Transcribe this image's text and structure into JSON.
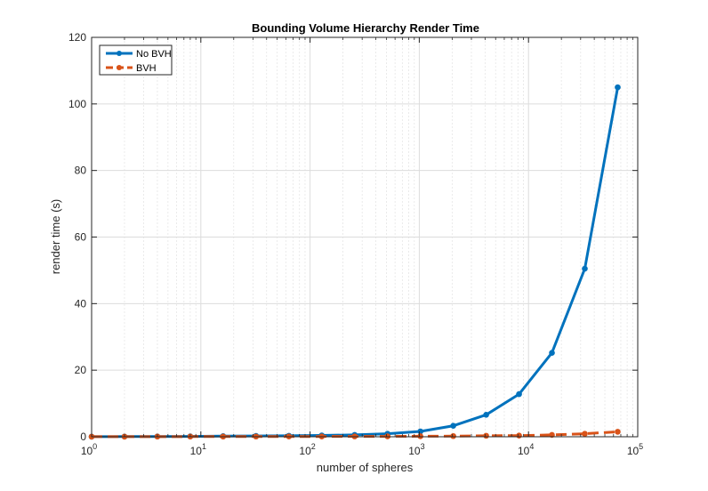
{
  "chart_data": {
    "type": "line",
    "title": "Bounding Volume Hierarchy Render Time",
    "xlabel": "number of spheres",
    "ylabel": "render time (s)",
    "xscale": "log",
    "xlim": [
      1,
      100000
    ],
    "ylim": [
      0,
      120
    ],
    "x_ticks": [
      {
        "base": "10",
        "exp": "0"
      },
      {
        "base": "10",
        "exp": "1"
      },
      {
        "base": "10",
        "exp": "2"
      },
      {
        "base": "10",
        "exp": "3"
      },
      {
        "base": "10",
        "exp": "4"
      },
      {
        "base": "10",
        "exp": "5"
      }
    ],
    "y_ticks": [
      "0",
      "20",
      "40",
      "60",
      "80",
      "100",
      "120"
    ],
    "grid": true,
    "legend_position": "top-left",
    "x": [
      1,
      2,
      4,
      8,
      16,
      32,
      64,
      128,
      256,
      512,
      1024,
      2048,
      4096,
      8192,
      16384,
      32768,
      65536
    ],
    "series": [
      {
        "name": "No BVH",
        "color": "#0072BD",
        "style": "solid",
        "values": [
          0.03,
          0.05,
          0.08,
          0.12,
          0.18,
          0.25,
          0.3,
          0.4,
          0.55,
          0.9,
          1.6,
          3.3,
          6.6,
          12.8,
          25.2,
          50.5,
          105
        ]
      },
      {
        "name": "BVH",
        "color": "#D95319",
        "style": "dashed",
        "values": [
          0.02,
          0.03,
          0.04,
          0.05,
          0.06,
          0.07,
          0.08,
          0.09,
          0.1,
          0.12,
          0.15,
          0.2,
          0.3,
          0.35,
          0.55,
          0.9,
          1.5
        ]
      }
    ]
  }
}
